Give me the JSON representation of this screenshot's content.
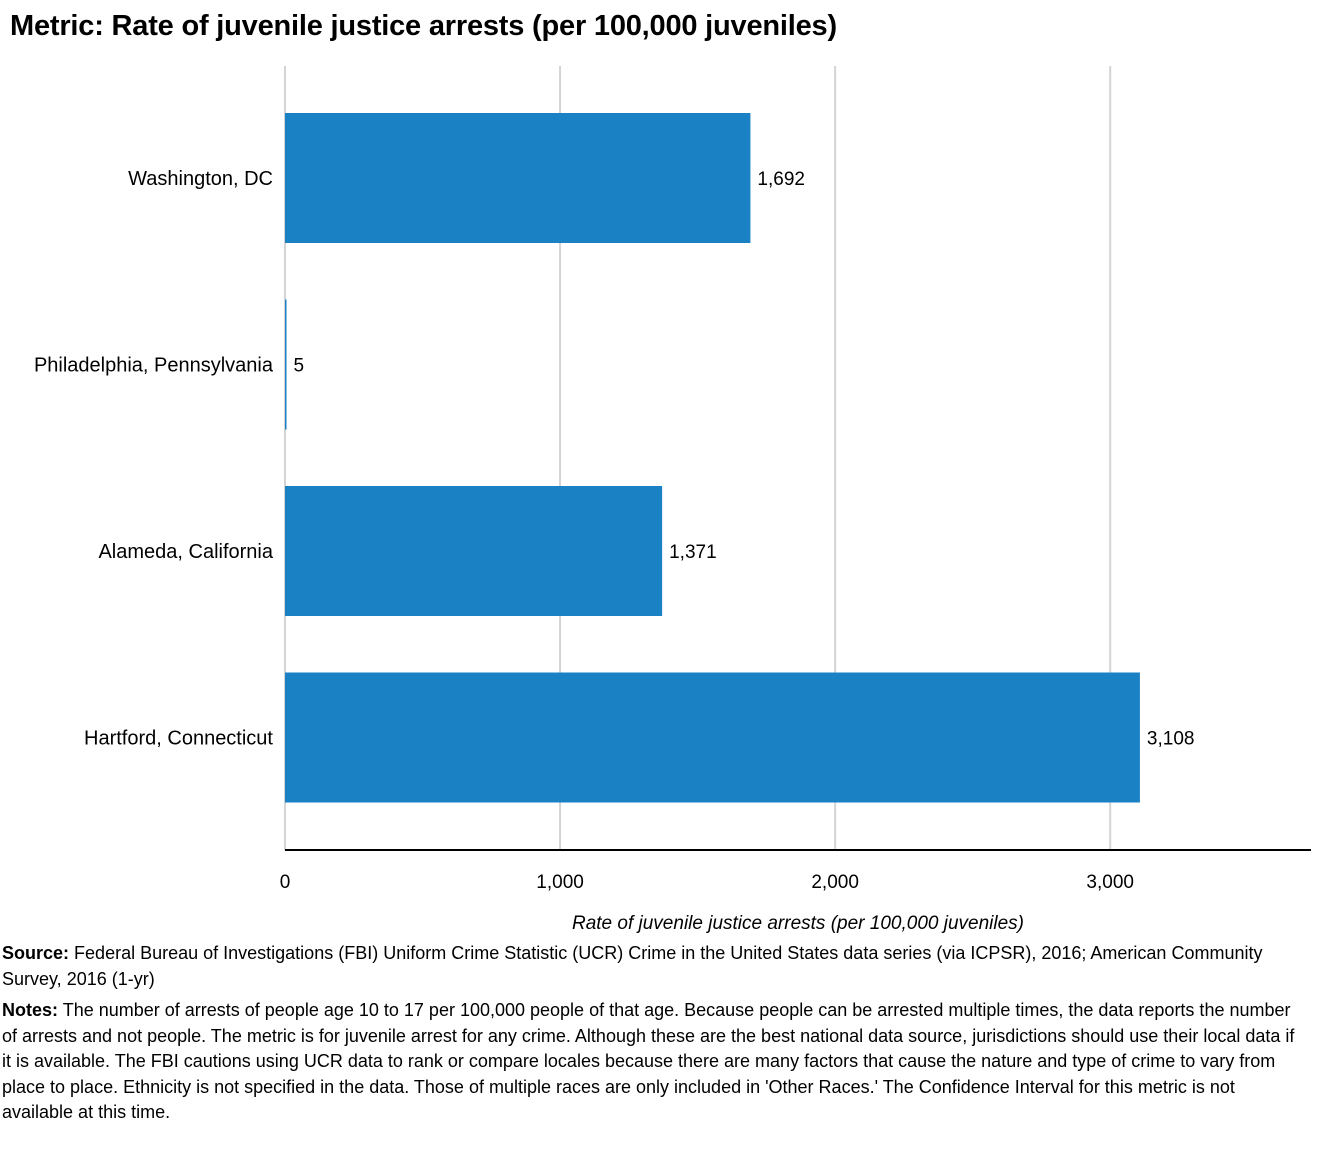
{
  "chart_data": {
    "type": "bar",
    "orientation": "horizontal",
    "title": "Metric: Rate of juvenile justice arrests (per 100,000 juveniles)",
    "xlabel": "Rate of juvenile justice arrests (per 100,000 juveniles)",
    "ylabel": "",
    "categories": [
      "Washington, DC",
      "Philadelphia, Pennsylvania",
      "Alameda, California",
      "Hartford, Connecticut"
    ],
    "values": [
      1692,
      5,
      1371,
      3108
    ],
    "value_labels": [
      "1,692",
      "5",
      "1,371",
      "3,108"
    ],
    "xlim": [
      0,
      3730
    ],
    "xticks": [
      0,
      1000,
      2000,
      3000
    ],
    "xtick_labels": [
      "0",
      "1,000",
      "2,000",
      "3,000"
    ],
    "grid": "vertical",
    "legend": "none",
    "bar_color": "#1a82c4"
  },
  "footer": {
    "source_label": "Source:",
    "source_text": "Federal Bureau of Investigations (FBI) Uniform Crime Statistic (UCR) Crime in the United States data series (via ICPSR), 2016; American Community Survey, 2016 (1-yr)",
    "notes_label": "Notes:",
    "notes_text": "The number of arrests of people age 10 to 17 per 100,000 people of that age. Because people can be arrested multiple times, the data reports the number of arrests and not people. The metric is for juvenile arrest for any crime. Although these are the best national data source, jurisdictions should use their local data if it is available. The FBI cautions using UCR data to rank or compare locales because there are many factors that cause the nature and type of crime to vary from place to place. Ethnicity is not specified in the data. Those of multiple races are only included in 'Other Races.' The Confidence Interval for this metric is not available at this time."
  }
}
